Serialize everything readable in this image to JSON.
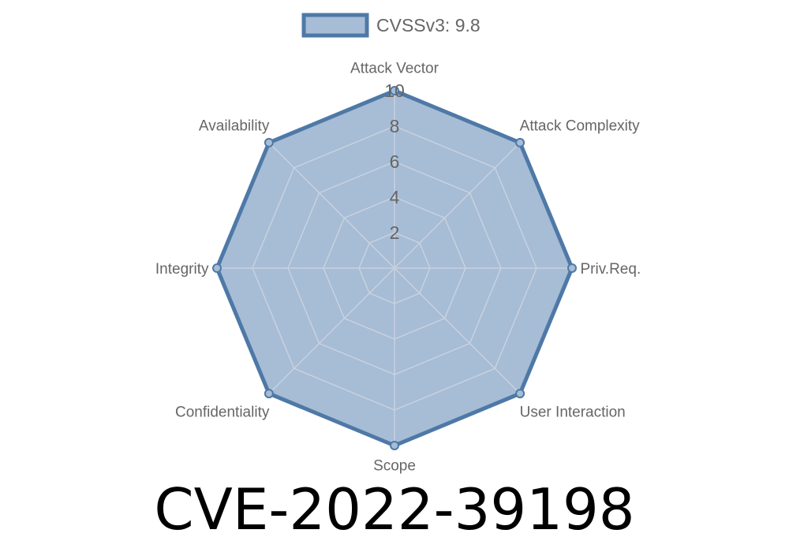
{
  "chart_data": {
    "type": "radar",
    "axes": [
      "Attack Vector",
      "Attack Complexity",
      "Priv.Req.",
      "User Interaction",
      "Scope",
      "Confidentiality",
      "Integrity",
      "Availability"
    ],
    "series": [
      {
        "name": "CVSSv3: 9.8",
        "values": [
          10,
          10,
          10,
          10,
          10,
          10,
          10,
          10
        ]
      }
    ],
    "rlim": [
      0,
      10
    ],
    "ticks": [
      "2",
      "4",
      "6",
      "8",
      "10"
    ],
    "tick_values": [
      2,
      4,
      6,
      8,
      10
    ],
    "legend_position": "top",
    "grid": true,
    "colors": {
      "line": "#4e79a7",
      "fill": "#a7bcd5",
      "grid": "#c8d2de"
    }
  },
  "title": "CVE-2022-39198"
}
